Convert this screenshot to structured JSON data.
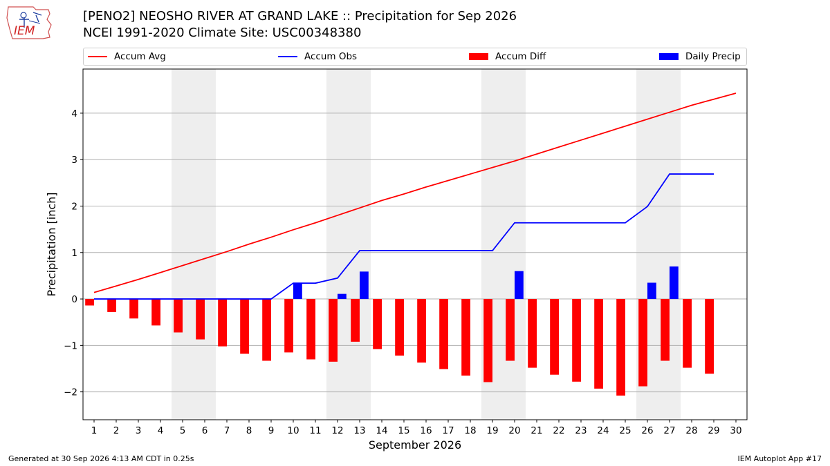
{
  "header": {
    "logo_text": "IEM",
    "title_line1": "[PENO2] NEOSHO RIVER  AT GRAND LAKE :: Precipitation for Sep 2026",
    "title_line2": "NCEI 1991-2020 Climate Site: USC00348380"
  },
  "legend": [
    {
      "label": "Accum Avg",
      "color": "#ff0000",
      "kind": "line"
    },
    {
      "label": "Accum Obs",
      "color": "#0000ff",
      "kind": "line"
    },
    {
      "label": "Accum Diff",
      "color": "#ff0000",
      "kind": "box"
    },
    {
      "label": "Daily Precip",
      "color": "#0000ff",
      "kind": "box"
    }
  ],
  "footer": {
    "left": "Generated at 30 Sep 2026 4:13 AM CDT in 0.25s",
    "right": "IEM Autoplot App #17"
  },
  "chart_data": {
    "type": "bar",
    "xlabel": "September 2026",
    "ylabel": "Precipitation [inch]",
    "ylim": [
      -2.6,
      4.95
    ],
    "xlim": [
      0.5,
      30.5
    ],
    "grid": "y",
    "legend_position": "top",
    "yticks": [
      -2,
      -1,
      0,
      1,
      2,
      3,
      4
    ],
    "ytick_labels": [
      "−2",
      "−1",
      "0",
      "1",
      "2",
      "3",
      "4"
    ],
    "days": [
      1,
      2,
      3,
      4,
      5,
      6,
      7,
      8,
      9,
      10,
      11,
      12,
      13,
      14,
      15,
      16,
      17,
      18,
      19,
      20,
      21,
      22,
      23,
      24,
      25,
      26,
      27,
      28,
      29,
      30
    ],
    "day_labels": [
      "1",
      "2",
      "3",
      "4",
      "5",
      "6",
      "7",
      "8",
      "9",
      "10",
      "11",
      "12",
      "13",
      "14",
      "15",
      "16",
      "17",
      "18",
      "19",
      "20",
      "21",
      "22",
      "23",
      "24",
      "25",
      "26",
      "27",
      "28",
      "29",
      "30"
    ],
    "weekend_shading": [
      [
        4.5,
        6.5
      ],
      [
        11.5,
        13.5
      ],
      [
        18.5,
        20.5
      ],
      [
        25.5,
        27.5
      ]
    ],
    "series": [
      {
        "name": "Accum Avg",
        "type": "line",
        "color": "#ff0000",
        "x": [
          1,
          2,
          3,
          4,
          5,
          6,
          7,
          8,
          9,
          10,
          11,
          12,
          13,
          14,
          15,
          16,
          17,
          18,
          19,
          20,
          21,
          22,
          23,
          24,
          25,
          26,
          27,
          28,
          29,
          30
        ],
        "values": [
          0.14,
          0.28,
          0.42,
          0.57,
          0.72,
          0.87,
          1.02,
          1.18,
          1.33,
          1.49,
          1.64,
          1.8,
          1.96,
          2.12,
          2.26,
          2.41,
          2.55,
          2.69,
          2.83,
          2.97,
          3.12,
          3.27,
          3.42,
          3.57,
          3.72,
          3.87,
          4.02,
          4.17,
          4.3,
          4.43
        ]
      },
      {
        "name": "Accum Obs",
        "type": "line",
        "color": "#0000ff",
        "x": [
          1,
          2,
          3,
          4,
          5,
          6,
          7,
          8,
          9,
          10,
          11,
          12,
          13,
          14,
          15,
          16,
          17,
          18,
          19,
          20,
          21,
          22,
          23,
          24,
          25,
          26,
          27,
          28,
          29
        ],
        "values": [
          0,
          0,
          0,
          0,
          0,
          0,
          0,
          0,
          0,
          0.34,
          0.34,
          0.45,
          1.04,
          1.04,
          1.04,
          1.04,
          1.04,
          1.04,
          1.04,
          1.64,
          1.64,
          1.64,
          1.64,
          1.64,
          1.64,
          1.99,
          2.69,
          2.69,
          2.69
        ]
      },
      {
        "name": "Accum Diff",
        "type": "bar",
        "color": "#ff0000",
        "x": [
          1,
          2,
          3,
          4,
          5,
          6,
          7,
          8,
          9,
          10,
          11,
          12,
          13,
          14,
          15,
          16,
          17,
          18,
          19,
          20,
          21,
          22,
          23,
          24,
          25,
          26,
          27,
          28,
          29
        ],
        "values": [
          -0.14,
          -0.28,
          -0.42,
          -0.57,
          -0.72,
          -0.87,
          -1.02,
          -1.18,
          -1.33,
          -1.15,
          -1.3,
          -1.35,
          -0.92,
          -1.08,
          -1.22,
          -1.37,
          -1.51,
          -1.65,
          -1.79,
          -1.33,
          -1.48,
          -1.63,
          -1.78,
          -1.93,
          -2.08,
          -1.88,
          -1.33,
          -1.48,
          -1.61
        ]
      },
      {
        "name": "Daily Precip",
        "type": "bar",
        "color": "#0000ff",
        "x": [
          10,
          12,
          13,
          20,
          26,
          27
        ],
        "values": [
          0.34,
          0.11,
          0.59,
          0.6,
          0.35,
          0.7
        ]
      }
    ]
  }
}
